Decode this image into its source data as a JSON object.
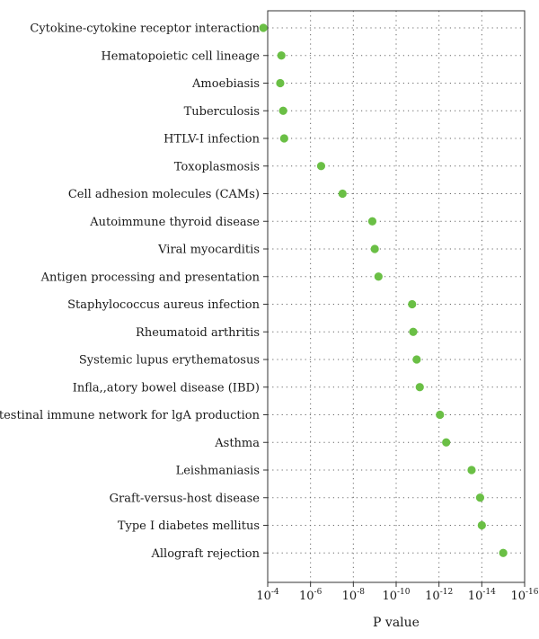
{
  "chart_data": {
    "type": "scatter",
    "xlabel": "P value",
    "x_scale": "log",
    "x_reversed": true,
    "xlim": [
      0.0001,
      1e-16
    ],
    "x_ticks": [
      {
        "value": 0.0001,
        "base": "10",
        "exp": "-4"
      },
      {
        "value": 1e-06,
        "base": "10",
        "exp": "-6"
      },
      {
        "value": 1e-08,
        "base": "10",
        "exp": "-8"
      },
      {
        "value": 1e-10,
        "base": "10",
        "exp": "-10"
      },
      {
        "value": 1e-12,
        "base": "10",
        "exp": "-12"
      },
      {
        "value": 1e-14,
        "base": "10",
        "exp": "-14"
      },
      {
        "value": 1e-16,
        "base": "10",
        "exp": "-16"
      }
    ],
    "grid": "dotted",
    "point_color": "#6abf45",
    "categories": [
      "Cytokine-cytokine receptor interaction",
      "Hematopoietic cell lineage",
      "Amoebiasis",
      "Tuberculosis",
      "HTLV-I infection",
      "Toxoplasmosis",
      "Cell adhesion molecules (CAMs)",
      "Autoimmune thyroid disease",
      "Viral myocarditis",
      "Antigen processing and presentation",
      "Staphylococcus aureus infection",
      "Rheumatoid arthritis",
      "Systemic lupus erythematosus",
      "Infla,,atory bowel disease (IBD)",
      "Intestinal immune network for lgA production",
      "Asthma",
      "Leishmaniasis",
      "Graft-versus-host disease",
      "Type I diabetes mellitus",
      "Allograft rejection"
    ],
    "values": [
      0.00016,
      2.3e-05,
      2.6e-05,
      1.9e-05,
      1.7e-05,
      3.2e-07,
      3.2e-08,
      1.3e-09,
      1e-09,
      6.7e-10,
      1.8e-11,
      1.6e-11,
      1.1e-11,
      7.9e-12,
      9e-13,
      4.6e-13,
      3e-14,
      1.2e-14,
      1e-14,
      1e-15
    ]
  }
}
